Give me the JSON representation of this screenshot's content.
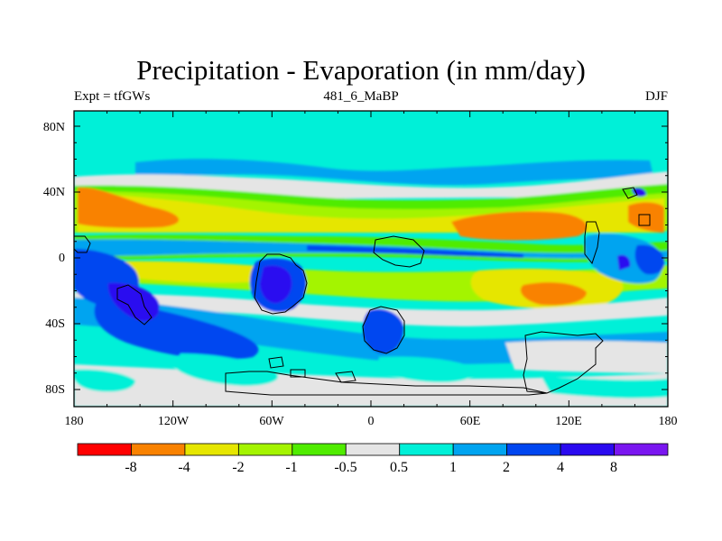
{
  "title": "Precipitation - Evaporation (in mm/day)",
  "subtitle_left": "Expt = tfGWs",
  "subtitle_center": "481_6_MaBP",
  "subtitle_right": "DJF",
  "lat_ticks": [
    "80N",
    "40N",
    "0",
    "40S",
    "80S"
  ],
  "lon_ticks": [
    "180",
    "120W",
    "60W",
    "0",
    "60E",
    "120E",
    "180"
  ],
  "colorbar": {
    "labels": [
      "-8",
      "-4",
      "-2",
      "-1",
      "-0.5",
      "0.5",
      "1",
      "2",
      "4",
      "8"
    ],
    "colors": [
      "#ff0000",
      "#f98200",
      "#e6e600",
      "#a4f400",
      "#50ec00",
      "#e5e5e5",
      "#00f0d8",
      "#00a4f0",
      "#0046f0",
      "#2a0af0",
      "#7a16f0"
    ]
  }
}
